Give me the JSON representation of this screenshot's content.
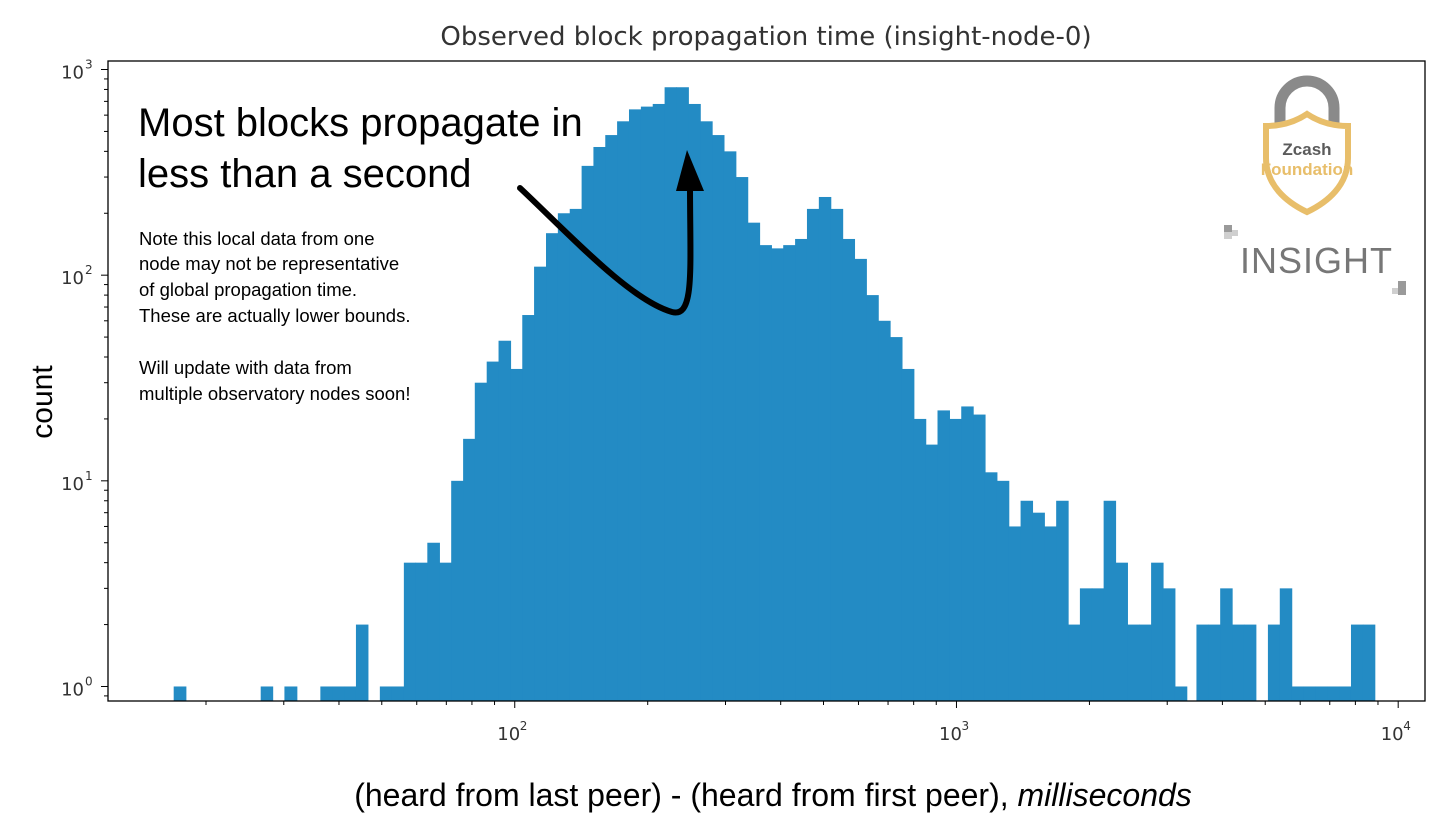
{
  "chart_data": {
    "type": "bar",
    "title": "Observed block propagation time (insight-node-0)",
    "xlabel": "(heard from last peer) - (heard from first peer), ",
    "xlabel_italic": "milliseconds",
    "ylabel": "count",
    "xscale": "log",
    "yscale": "log",
    "xlim": [
      12,
      11500
    ],
    "ylim": [
      0.85,
      1100
    ],
    "grid": false,
    "color": "#238bc4",
    "x_ticks": [
      {
        "value": 100,
        "base": "10",
        "exp": "2"
      },
      {
        "value": 1000,
        "base": "10",
        "exp": "3"
      },
      {
        "value": 10000,
        "base": "10",
        "exp": "4"
      }
    ],
    "y_ticks": [
      {
        "value": 1,
        "base": "10",
        "exp": "0"
      },
      {
        "value": 10,
        "base": "10",
        "exp": "1"
      },
      {
        "value": 100,
        "base": "10",
        "exp": "2"
      },
      {
        "value": 1000,
        "base": "10",
        "exp": "3"
      }
    ],
    "bins": [
      {
        "x0": 16.9,
        "x1": 18.0,
        "count": 1
      },
      {
        "x0": 26.6,
        "x1": 28.3,
        "count": 1
      },
      {
        "x0": 30.1,
        "x1": 32.1,
        "count": 1
      },
      {
        "x0": 36.3,
        "x1": 38.6,
        "count": 1
      },
      {
        "x0": 38.6,
        "x1": 41.1,
        "count": 1
      },
      {
        "x0": 41.1,
        "x1": 43.7,
        "count": 1
      },
      {
        "x0": 43.7,
        "x1": 46.5,
        "count": 2
      },
      {
        "x0": 49.5,
        "x1": 52.7,
        "count": 1
      },
      {
        "x0": 52.7,
        "x1": 56.1,
        "count": 1
      },
      {
        "x0": 56.1,
        "x1": 59.6,
        "count": 4
      },
      {
        "x0": 59.6,
        "x1": 63.4,
        "count": 4
      },
      {
        "x0": 63.4,
        "x1": 67.5,
        "count": 5
      },
      {
        "x0": 67.5,
        "x1": 71.8,
        "count": 4
      },
      {
        "x0": 71.8,
        "x1": 76.4,
        "count": 10
      },
      {
        "x0": 76.4,
        "x1": 81.2,
        "count": 16
      },
      {
        "x0": 81.2,
        "x1": 86.4,
        "count": 30
      },
      {
        "x0": 86.4,
        "x1": 91.9,
        "count": 38
      },
      {
        "x0": 91.9,
        "x1": 97.8,
        "count": 48
      },
      {
        "x0": 97.8,
        "x1": 104.0,
        "count": 35
      },
      {
        "x0": 104.0,
        "x1": 110.6,
        "count": 64
      },
      {
        "x0": 110.6,
        "x1": 117.7,
        "count": 110
      },
      {
        "x0": 117.7,
        "x1": 125.2,
        "count": 160
      },
      {
        "x0": 125.2,
        "x1": 133.2,
        "count": 200
      },
      {
        "x0": 133.2,
        "x1": 141.7,
        "count": 210
      },
      {
        "x0": 141.7,
        "x1": 150.7,
        "count": 340
      },
      {
        "x0": 150.7,
        "x1": 160.3,
        "count": 420
      },
      {
        "x0": 160.3,
        "x1": 170.5,
        "count": 480
      },
      {
        "x0": 170.5,
        "x1": 181.4,
        "count": 560
      },
      {
        "x0": 181.4,
        "x1": 193.0,
        "count": 640
      },
      {
        "x0": 193.0,
        "x1": 205.3,
        "count": 660
      },
      {
        "x0": 205.3,
        "x1": 218.4,
        "count": 680
      },
      {
        "x0": 218.4,
        "x1": 232.3,
        "count": 820
      },
      {
        "x0": 232.3,
        "x1": 247.1,
        "count": 820
      },
      {
        "x0": 247.1,
        "x1": 262.9,
        "count": 680
      },
      {
        "x0": 262.9,
        "x1": 279.7,
        "count": 560
      },
      {
        "x0": 279.7,
        "x1": 297.5,
        "count": 480
      },
      {
        "x0": 297.5,
        "x1": 316.5,
        "count": 400
      },
      {
        "x0": 316.5,
        "x1": 336.7,
        "count": 300
      },
      {
        "x0": 336.7,
        "x1": 358.2,
        "count": 180
      },
      {
        "x0": 358.2,
        "x1": 381.0,
        "count": 140
      },
      {
        "x0": 381.0,
        "x1": 405.3,
        "count": 135
      },
      {
        "x0": 405.3,
        "x1": 431.2,
        "count": 140
      },
      {
        "x0": 431.2,
        "x1": 458.7,
        "count": 150
      },
      {
        "x0": 458.7,
        "x1": 488.0,
        "count": 210
      },
      {
        "x0": 488.0,
        "x1": 519.1,
        "count": 240
      },
      {
        "x0": 519.1,
        "x1": 552.3,
        "count": 210
      },
      {
        "x0": 552.3,
        "x1": 587.5,
        "count": 150
      },
      {
        "x0": 587.5,
        "x1": 625.0,
        "count": 120
      },
      {
        "x0": 625.0,
        "x1": 664.9,
        "count": 80
      },
      {
        "x0": 664.9,
        "x1": 707.3,
        "count": 60
      },
      {
        "x0": 707.3,
        "x1": 752.5,
        "count": 50
      },
      {
        "x0": 752.5,
        "x1": 800.5,
        "count": 35
      },
      {
        "x0": 800.5,
        "x1": 851.6,
        "count": 20
      },
      {
        "x0": 851.6,
        "x1": 905.9,
        "count": 15
      },
      {
        "x0": 905.9,
        "x1": 963.7,
        "count": 22
      },
      {
        "x0": 963.7,
        "x1": 1025.2,
        "count": 20
      },
      {
        "x0": 1025.2,
        "x1": 1090.6,
        "count": 23
      },
      {
        "x0": 1090.6,
        "x1": 1160.2,
        "count": 21
      },
      {
        "x0": 1160.2,
        "x1": 1234.2,
        "count": 11
      },
      {
        "x0": 1234.2,
        "x1": 1313.0,
        "count": 10
      },
      {
        "x0": 1313.0,
        "x1": 1396.8,
        "count": 6
      },
      {
        "x0": 1396.8,
        "x1": 1485.9,
        "count": 8
      },
      {
        "x0": 1485.9,
        "x1": 1580.7,
        "count": 7
      },
      {
        "x0": 1580.7,
        "x1": 1681.6,
        "count": 6
      },
      {
        "x0": 1681.6,
        "x1": 1788.9,
        "count": 8
      },
      {
        "x0": 1788.9,
        "x1": 1903.0,
        "count": 2
      },
      {
        "x0": 1903.0,
        "x1": 2024.4,
        "count": 3
      },
      {
        "x0": 2024.4,
        "x1": 2153.6,
        "count": 3
      },
      {
        "x0": 2153.6,
        "x1": 2291.0,
        "count": 8
      },
      {
        "x0": 2291.0,
        "x1": 2437.2,
        "count": 4
      },
      {
        "x0": 2437.2,
        "x1": 2592.7,
        "count": 2
      },
      {
        "x0": 2592.7,
        "x1": 2758.2,
        "count": 2
      },
      {
        "x0": 2758.2,
        "x1": 2934.2,
        "count": 4
      },
      {
        "x0": 2934.2,
        "x1": 3121.4,
        "count": 3
      },
      {
        "x0": 3121.4,
        "x1": 3320.6,
        "count": 1
      },
      {
        "x0": 3493.6,
        "x1": 3716.5,
        "count": 2
      },
      {
        "x0": 3716.5,
        "x1": 3953.7,
        "count": 2
      },
      {
        "x0": 3953.7,
        "x1": 4206.0,
        "count": 3
      },
      {
        "x0": 4206.0,
        "x1": 4474.4,
        "count": 2
      },
      {
        "x0": 4474.4,
        "x1": 4759.9,
        "count": 2
      },
      {
        "x0": 5070.8,
        "x1": 5394.4,
        "count": 2
      },
      {
        "x0": 5394.4,
        "x1": 5738.6,
        "count": 3
      },
      {
        "x0": 5738.6,
        "x1": 6104.8,
        "count": 1
      },
      {
        "x0": 6104.8,
        "x1": 6494.4,
        "count": 1
      },
      {
        "x0": 6494.4,
        "x1": 6908.8,
        "count": 1
      },
      {
        "x0": 6908.8,
        "x1": 7349.7,
        "count": 1
      },
      {
        "x0": 7349.7,
        "x1": 7818.7,
        "count": 1
      },
      {
        "x0": 7818.7,
        "x1": 8317.6,
        "count": 2
      },
      {
        "x0": 8317.6,
        "x1": 8848.4,
        "count": 2
      }
    ],
    "annotations": {
      "headline": [
        "Most blocks propagate in",
        "less than a second"
      ],
      "note": [
        "Note this local data from one",
        "node may not be representative",
        "of global propagation time.",
        "These are actually lower bounds.",
        "",
        "Will update with data from",
        "multiple observatory nodes soon!"
      ]
    }
  },
  "logos": {
    "zcash": {
      "line1": "Zcash",
      "line2": "Foundation",
      "gold": "#e8be6a",
      "grey": "#8a8a8a"
    },
    "insight": {
      "text": "INSIGHT"
    }
  }
}
